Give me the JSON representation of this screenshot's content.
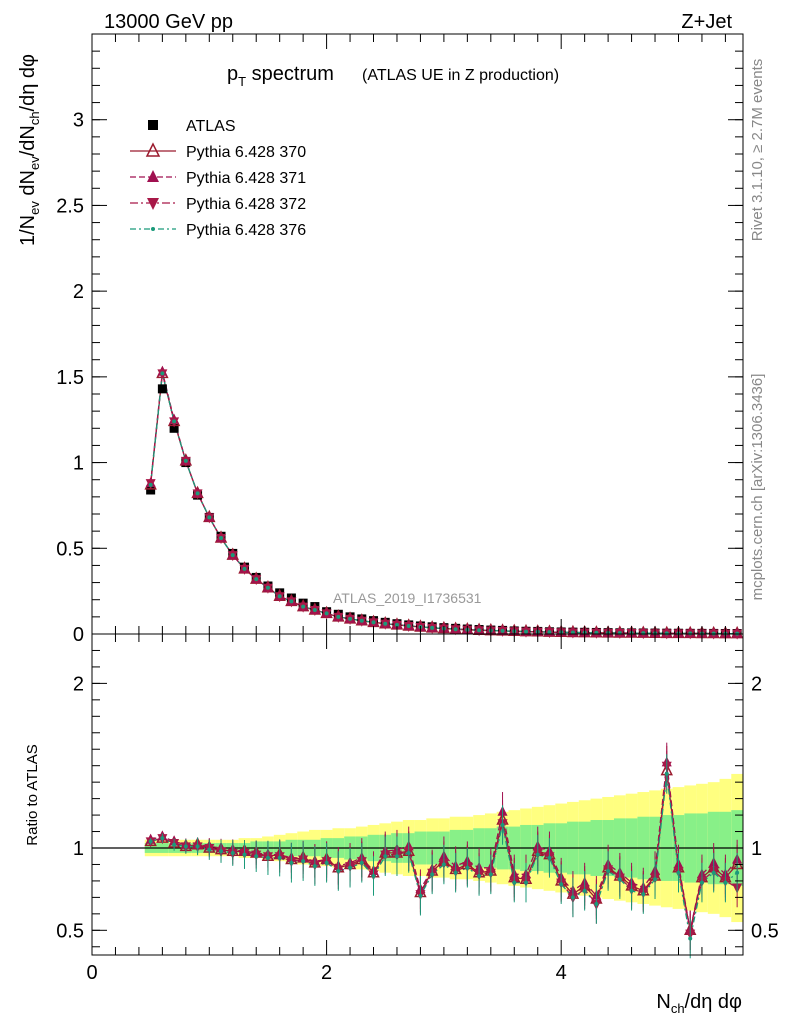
{
  "header": {
    "energy": "13000 GeV pp",
    "process": "Z+Jet"
  },
  "side_labels": {
    "rivet": "Rivet 3.1.10, ≥ 2.7M events",
    "mcplots": "mcplots.cern.ch [arXiv:1306.3436]"
  },
  "chart_data": [
    {
      "type": "line",
      "title": "p_T spectrum",
      "title_main": "p",
      "title_sub": "T",
      "title_rest": " spectrum",
      "subtitle": "(ATLAS UE in Z production)",
      "watermark": "ATLAS_2019_I1736531",
      "ylabel": "1/N_ev dN_ev/dN_ch/dη dφ",
      "xlim": [
        0,
        5.55
      ],
      "ylim": [
        0,
        3.5
      ],
      "yticks": [
        0,
        0.5,
        1,
        1.5,
        2,
        2.5,
        3
      ],
      "ytick_labels": [
        "0",
        "0.5",
        "1",
        "1.5",
        "2",
        "2.5",
        "3"
      ],
      "x": [
        0.5,
        0.6,
        0.7,
        0.8,
        0.9,
        1.0,
        1.1,
        1.2,
        1.3,
        1.4,
        1.5,
        1.6,
        1.7,
        1.8,
        1.9,
        2.0,
        2.1,
        2.2,
        2.3,
        2.4,
        2.5,
        2.6,
        2.7,
        2.8,
        2.9,
        3.0,
        3.1,
        3.2,
        3.3,
        3.4,
        3.5,
        3.6,
        3.7,
        3.8,
        3.9,
        4.0,
        4.1,
        4.2,
        4.3,
        4.4,
        4.5,
        4.6,
        4.7,
        4.8,
        4.9,
        5.0,
        5.1,
        5.2,
        5.3,
        5.4,
        5.5
      ],
      "series": [
        {
          "name": "ATLAS",
          "values": [
            0.84,
            1.43,
            1.2,
            1.0,
            0.81,
            0.68,
            0.57,
            0.47,
            0.39,
            0.33,
            0.28,
            0.24,
            0.21,
            0.18,
            0.16,
            0.13,
            0.115,
            0.1,
            0.088,
            0.078,
            0.068,
            0.06,
            0.053,
            0.047,
            0.042,
            0.037,
            0.033,
            0.029,
            0.026,
            0.023,
            0.021,
            0.018,
            0.016,
            0.015,
            0.013,
            0.012,
            0.011,
            0.01,
            0.009,
            0.008,
            0.007,
            0.0065,
            0.006,
            0.0055,
            0.005,
            0.0045,
            0.004,
            0.0037,
            0.0034,
            0.003,
            0.0028
          ]
        },
        {
          "name": "Pythia 6.428 370",
          "values": [
            0.87,
            1.52,
            1.24,
            1.01,
            0.82,
            0.68,
            0.56,
            0.46,
            0.38,
            0.32,
            0.27,
            0.22,
            0.19,
            0.16,
            0.14,
            0.12,
            0.1,
            0.088,
            0.077,
            0.068,
            0.06,
            0.053,
            0.047,
            0.041,
            0.036,
            0.032,
            0.028,
            0.025,
            0.022,
            0.02,
            0.018,
            0.016,
            0.014,
            0.013,
            0.011,
            0.01,
            0.009,
            0.008,
            0.007,
            0.0065,
            0.006,
            0.0055,
            0.005,
            0.0045,
            0.004,
            0.0037,
            0.0034,
            0.003,
            0.0028,
            0.0025,
            0.0023
          ]
        },
        {
          "name": "Pythia 6.428 371",
          "values": [
            0.88,
            1.53,
            1.25,
            1.01,
            0.82,
            0.68,
            0.56,
            0.46,
            0.38,
            0.32,
            0.27,
            0.22,
            0.19,
            0.16,
            0.14,
            0.12,
            0.1,
            0.088,
            0.077,
            0.068,
            0.06,
            0.053,
            0.047,
            0.041,
            0.036,
            0.032,
            0.028,
            0.025,
            0.022,
            0.02,
            0.018,
            0.016,
            0.014,
            0.013,
            0.011,
            0.01,
            0.009,
            0.008,
            0.007,
            0.0065,
            0.006,
            0.0055,
            0.005,
            0.0045,
            0.004,
            0.0037,
            0.0034,
            0.003,
            0.0028,
            0.0025,
            0.0023
          ]
        },
        {
          "name": "Pythia 6.428 372",
          "values": [
            0.88,
            1.52,
            1.24,
            1.01,
            0.82,
            0.68,
            0.56,
            0.46,
            0.38,
            0.32,
            0.27,
            0.22,
            0.19,
            0.16,
            0.14,
            0.12,
            0.1,
            0.088,
            0.077,
            0.068,
            0.06,
            0.053,
            0.047,
            0.041,
            0.036,
            0.032,
            0.028,
            0.025,
            0.022,
            0.02,
            0.018,
            0.016,
            0.014,
            0.013,
            0.011,
            0.01,
            0.009,
            0.008,
            0.007,
            0.0065,
            0.006,
            0.0055,
            0.005,
            0.0045,
            0.004,
            0.0037,
            0.0034,
            0.003,
            0.0028,
            0.0025,
            0.0023
          ]
        },
        {
          "name": "Pythia 6.428 376",
          "values": [
            0.87,
            1.52,
            1.24,
            1.01,
            0.82,
            0.68,
            0.56,
            0.46,
            0.38,
            0.32,
            0.27,
            0.22,
            0.19,
            0.16,
            0.14,
            0.12,
            0.1,
            0.088,
            0.077,
            0.068,
            0.06,
            0.053,
            0.047,
            0.041,
            0.036,
            0.032,
            0.028,
            0.025,
            0.022,
            0.02,
            0.018,
            0.016,
            0.014,
            0.013,
            0.011,
            0.01,
            0.009,
            0.008,
            0.007,
            0.0065,
            0.006,
            0.0055,
            0.005,
            0.0045,
            0.004,
            0.0037,
            0.0034,
            0.003,
            0.0028,
            0.0025,
            0.0023
          ]
        }
      ]
    },
    {
      "type": "line",
      "ylabel": "Ratio to ATLAS",
      "xlabel": "N_ch/dη dφ",
      "xlim": [
        0,
        5.55
      ],
      "ylim": [
        0.35,
        2.3
      ],
      "yticks": [
        0.5,
        1,
        2
      ],
      "ytick_labels": [
        "0.5",
        "1",
        "2"
      ],
      "xticks": [
        0,
        2,
        4
      ],
      "xtick_labels": [
        "0",
        "2",
        "4"
      ],
      "x": [
        0.5,
        0.6,
        0.7,
        0.8,
        0.9,
        1.0,
        1.1,
        1.2,
        1.3,
        1.4,
        1.5,
        1.6,
        1.7,
        1.8,
        1.9,
        2.0,
        2.1,
        2.2,
        2.3,
        2.4,
        2.5,
        2.6,
        2.7,
        2.8,
        2.9,
        3.0,
        3.1,
        3.2,
        3.3,
        3.4,
        3.5,
        3.6,
        3.7,
        3.8,
        3.9,
        4.0,
        4.1,
        4.2,
        4.3,
        4.4,
        4.5,
        4.6,
        4.7,
        4.8,
        4.9,
        5.0,
        5.1,
        5.2,
        5.3,
        5.4,
        5.5
      ],
      "band_stat": [
        0.03,
        0.03,
        0.03,
        0.03,
        0.03,
        0.03,
        0.03,
        0.03,
        0.03,
        0.04,
        0.04,
        0.04,
        0.05,
        0.05,
        0.05,
        0.06,
        0.06,
        0.07,
        0.07,
        0.08,
        0.08,
        0.09,
        0.09,
        0.1,
        0.1,
        0.1,
        0.11,
        0.11,
        0.12,
        0.12,
        0.13,
        0.13,
        0.14,
        0.14,
        0.15,
        0.15,
        0.16,
        0.16,
        0.17,
        0.17,
        0.18,
        0.18,
        0.19,
        0.19,
        0.2,
        0.2,
        0.21,
        0.21,
        0.22,
        0.22,
        0.23
      ],
      "band_total": [
        0.05,
        0.05,
        0.05,
        0.05,
        0.05,
        0.05,
        0.05,
        0.05,
        0.06,
        0.06,
        0.07,
        0.08,
        0.09,
        0.1,
        0.11,
        0.11,
        0.12,
        0.12,
        0.13,
        0.14,
        0.15,
        0.16,
        0.17,
        0.17,
        0.18,
        0.18,
        0.19,
        0.19,
        0.2,
        0.21,
        0.22,
        0.23,
        0.24,
        0.25,
        0.26,
        0.27,
        0.28,
        0.29,
        0.3,
        0.31,
        0.32,
        0.33,
        0.34,
        0.35,
        0.36,
        0.37,
        0.38,
        0.39,
        0.4,
        0.42,
        0.45
      ],
      "series": [
        {
          "name": "Pythia 6.428 370",
          "values": [
            1.04,
            1.06,
            1.03,
            1.01,
            1.02,
            1.0,
            0.99,
            0.98,
            0.98,
            0.97,
            0.95,
            0.96,
            0.93,
            0.94,
            0.91,
            0.93,
            0.88,
            0.9,
            0.93,
            0.85,
            0.97,
            0.97,
            0.98,
            0.73,
            0.86,
            0.92,
            0.87,
            0.9,
            0.85,
            0.86,
            1.17,
            0.82,
            0.81,
            0.98,
            0.96,
            0.8,
            0.72,
            0.77,
            0.69,
            0.88,
            0.83,
            0.77,
            0.74,
            0.83,
            1.47,
            0.88,
            0.5,
            0.82,
            0.88,
            0.82,
            0.9
          ]
        },
        {
          "name": "Pythia 6.428 371",
          "values": [
            1.05,
            1.07,
            1.04,
            1.02,
            1.02,
            1.01,
            1.0,
            0.99,
            0.98,
            0.97,
            0.96,
            0.96,
            0.94,
            0.94,
            0.92,
            0.93,
            0.89,
            0.91,
            0.94,
            0.86,
            0.98,
            0.99,
            1.01,
            0.75,
            0.87,
            0.95,
            0.89,
            0.92,
            0.88,
            0.88,
            1.22,
            0.84,
            0.84,
            1.01,
            0.98,
            0.82,
            0.74,
            0.79,
            0.71,
            0.9,
            0.85,
            0.79,
            0.76,
            0.86,
            1.52,
            0.9,
            0.5,
            0.84,
            0.91,
            0.84,
            0.93
          ]
        },
        {
          "name": "Pythia 6.428 372",
          "values": [
            1.04,
            1.06,
            1.03,
            1.01,
            1.01,
            1.0,
            0.98,
            0.97,
            0.97,
            0.96,
            0.95,
            0.95,
            0.92,
            0.93,
            0.9,
            0.92,
            0.87,
            0.89,
            0.92,
            0.84,
            0.96,
            0.96,
            0.98,
            0.72,
            0.85,
            0.91,
            0.86,
            0.89,
            0.84,
            0.85,
            1.15,
            0.8,
            0.8,
            0.97,
            0.95,
            0.79,
            0.7,
            0.75,
            0.66,
            0.87,
            0.82,
            0.75,
            0.73,
            0.82,
            1.5,
            0.86,
            0.48,
            0.8,
            0.86,
            0.8,
            0.76
          ]
        },
        {
          "name": "Pythia 6.428 376",
          "values": [
            1.04,
            1.06,
            1.02,
            1.01,
            1.01,
            0.99,
            0.98,
            0.97,
            0.96,
            0.95,
            0.94,
            0.94,
            0.91,
            0.92,
            0.89,
            0.91,
            0.86,
            0.88,
            0.91,
            0.83,
            0.95,
            0.95,
            0.97,
            0.71,
            0.84,
            0.9,
            0.85,
            0.88,
            0.83,
            0.84,
            1.14,
            0.79,
            0.79,
            0.96,
            0.94,
            0.78,
            0.7,
            0.74,
            0.66,
            0.86,
            0.81,
            0.74,
            0.72,
            0.81,
            1.45,
            0.85,
            0.45,
            0.79,
            0.85,
            0.79,
            0.85
          ]
        }
      ]
    }
  ],
  "legend": [
    {
      "label": "ATLAS",
      "marker": "square",
      "color": "#000000",
      "dash": ""
    },
    {
      "label": "Pythia 6.428 370",
      "marker": "triangle-open",
      "color": "#9b1b2e",
      "dash": ""
    },
    {
      "label": "Pythia 6.428 371",
      "marker": "triangle",
      "color": "#a01050",
      "dash": "6,3"
    },
    {
      "label": "Pythia 6.428 372",
      "marker": "triangle-down",
      "color": "#a81848",
      "dash": "8,3,2,3"
    },
    {
      "label": "Pythia 6.428 376",
      "marker": "dot",
      "color": "#1a9a7a",
      "dash": "6,3,2,3"
    }
  ],
  "colors": {
    "band_total": "#ffff80",
    "band_stat": "#88f088",
    "data": "#000000",
    "s370": "#9b1b2e",
    "s371": "#a01050",
    "s372": "#a81848",
    "s376": "#1a9a7a",
    "watermark": "#999999"
  }
}
